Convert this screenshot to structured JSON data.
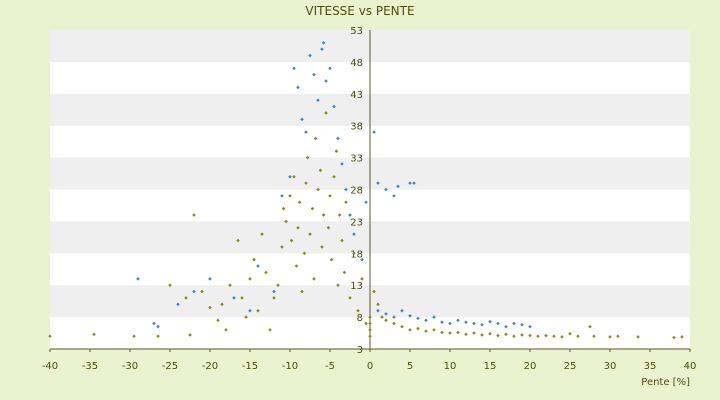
{
  "chart_data": {
    "type": "scatter",
    "title": "VITESSE vs PENTE",
    "xlabel": "Pente [%]",
    "ylabel": "",
    "xlim": [
      -40,
      40
    ],
    "ylim": [
      3,
      53
    ],
    "x_ticks": [
      -40,
      -35,
      -30,
      -25,
      -20,
      -15,
      -10,
      -5,
      0,
      5,
      10,
      15,
      20,
      25,
      30,
      35,
      40
    ],
    "y_ticks": [
      3,
      8,
      13,
      18,
      23,
      28,
      33,
      38,
      43,
      48,
      53
    ],
    "y_axis_crosses_at_x": 0,
    "grid": "horizontal alternating bands",
    "legend": "none",
    "colors": {
      "background": "#ebf2cf",
      "plot_band_light": "#ffffff",
      "plot_band_dark": "#efefef",
      "axis": "#5a5a1e",
      "text": "#4d4d10",
      "series_1": "#8a8a1a",
      "series_2": "#3d85c6"
    },
    "series": [
      {
        "marker": "diamond",
        "color": "#8a8a1a",
        "points": [
          [
            -40,
            5
          ],
          [
            -34.5,
            5.3
          ],
          [
            -29.5,
            5
          ],
          [
            -26.5,
            5
          ],
          [
            -22.5,
            5.2
          ],
          [
            -22,
            24
          ],
          [
            -25,
            13
          ],
          [
            -23,
            11
          ],
          [
            -21,
            12
          ],
          [
            -20,
            9.5
          ],
          [
            -19,
            7.5
          ],
          [
            -18.5,
            10
          ],
          [
            -18,
            6
          ],
          [
            -17.5,
            13
          ],
          [
            -16.5,
            20
          ],
          [
            -16,
            11
          ],
          [
            -15.5,
            8
          ],
          [
            -15,
            14
          ],
          [
            -14.5,
            17
          ],
          [
            -14,
            9
          ],
          [
            -13.5,
            21
          ],
          [
            -13,
            15
          ],
          [
            -12.5,
            6
          ],
          [
            -12,
            11
          ],
          [
            -11.5,
            13
          ],
          [
            -11,
            19
          ],
          [
            -10.8,
            25
          ],
          [
            -10.5,
            23
          ],
          [
            -10,
            27
          ],
          [
            -9.8,
            20
          ],
          [
            -9.5,
            30
          ],
          [
            -9.2,
            16
          ],
          [
            -9,
            22
          ],
          [
            -8.8,
            26
          ],
          [
            -8.5,
            12
          ],
          [
            -8.2,
            18
          ],
          [
            -8,
            29
          ],
          [
            -7.8,
            33
          ],
          [
            -7.5,
            21
          ],
          [
            -7.2,
            25
          ],
          [
            -7,
            14
          ],
          [
            -6.8,
            36
          ],
          [
            -6.5,
            28
          ],
          [
            -6.2,
            31
          ],
          [
            -6,
            19
          ],
          [
            -5.8,
            24
          ],
          [
            -5.5,
            40
          ],
          [
            -5.2,
            22
          ],
          [
            -5,
            27
          ],
          [
            -4.8,
            17
          ],
          [
            -4.5,
            30
          ],
          [
            -4.2,
            34
          ],
          [
            -4,
            13
          ],
          [
            -3.8,
            24
          ],
          [
            -3.5,
            20
          ],
          [
            -3.2,
            15
          ],
          [
            -3,
            26
          ],
          [
            -2.5,
            11
          ],
          [
            -2,
            18
          ],
          [
            -1.5,
            9
          ],
          [
            -1,
            14
          ],
          [
            -0.5,
            7
          ],
          [
            0,
            5
          ],
          [
            0,
            6
          ],
          [
            0,
            7
          ],
          [
            0,
            8
          ],
          [
            0.5,
            12
          ],
          [
            1,
            10
          ],
          [
            1.5,
            8
          ],
          [
            2,
            7.5
          ],
          [
            3,
            7
          ],
          [
            4,
            6.5
          ],
          [
            5,
            6
          ],
          [
            6,
            6.2
          ],
          [
            7,
            5.8
          ],
          [
            8,
            6
          ],
          [
            9,
            5.6
          ],
          [
            10,
            5.5
          ],
          [
            11,
            5.6
          ],
          [
            12,
            5.3
          ],
          [
            13,
            5.5
          ],
          [
            14,
            5.2
          ],
          [
            15,
            5.4
          ],
          [
            16,
            5.1
          ],
          [
            17,
            5.3
          ],
          [
            18,
            5
          ],
          [
            19,
            5.2
          ],
          [
            20,
            5.1
          ],
          [
            21,
            5
          ],
          [
            22,
            5.1
          ],
          [
            23,
            5
          ],
          [
            24,
            4.9
          ],
          [
            25,
            5.4
          ],
          [
            26,
            5
          ],
          [
            27.5,
            6.5
          ],
          [
            28,
            5
          ],
          [
            30,
            4.9
          ],
          [
            31,
            5
          ],
          [
            33.5,
            4.9
          ],
          [
            38,
            4.8
          ],
          [
            39,
            4.9
          ]
        ]
      },
      {
        "marker": "diamond",
        "color": "#3d85c6",
        "points": [
          [
            -29,
            14
          ],
          [
            -27,
            7
          ],
          [
            -26.5,
            6.5
          ],
          [
            -24,
            10
          ],
          [
            -22,
            12
          ],
          [
            -20,
            14
          ],
          [
            -17,
            11
          ],
          [
            -15,
            9
          ],
          [
            -14,
            16
          ],
          [
            -12,
            12
          ],
          [
            -11,
            27
          ],
          [
            -10,
            30
          ],
          [
            -9.5,
            47
          ],
          [
            -9,
            44
          ],
          [
            -8.5,
            39
          ],
          [
            -8,
            37
          ],
          [
            -7.5,
            49
          ],
          [
            -7,
            46
          ],
          [
            -6.5,
            42
          ],
          [
            -6,
            50
          ],
          [
            -5.8,
            51
          ],
          [
            -5.5,
            45
          ],
          [
            -5,
            47
          ],
          [
            -4.5,
            41
          ],
          [
            -4,
            36
          ],
          [
            -3.5,
            32
          ],
          [
            -3,
            28
          ],
          [
            -2.5,
            24
          ],
          [
            -2,
            21
          ],
          [
            -1,
            17
          ],
          [
            -0.5,
            26
          ],
          [
            0.5,
            37
          ],
          [
            1,
            29
          ],
          [
            2,
            28
          ],
          [
            3,
            27
          ],
          [
            3.5,
            28.5
          ],
          [
            5,
            29
          ],
          [
            5.5,
            29
          ],
          [
            1,
            9
          ],
          [
            2,
            8.5
          ],
          [
            3,
            8
          ],
          [
            4,
            9
          ],
          [
            5,
            8.2
          ],
          [
            6,
            7.8
          ],
          [
            7,
            7.5
          ],
          [
            8,
            8
          ],
          [
            9,
            7.2
          ],
          [
            10,
            7
          ],
          [
            11,
            7.5
          ],
          [
            12,
            7.2
          ],
          [
            13,
            7
          ],
          [
            14,
            6.8
          ],
          [
            15,
            7.3
          ],
          [
            16,
            7
          ],
          [
            17,
            6.5
          ],
          [
            18,
            7
          ],
          [
            19,
            6.8
          ],
          [
            20,
            6.5
          ]
        ]
      }
    ]
  }
}
